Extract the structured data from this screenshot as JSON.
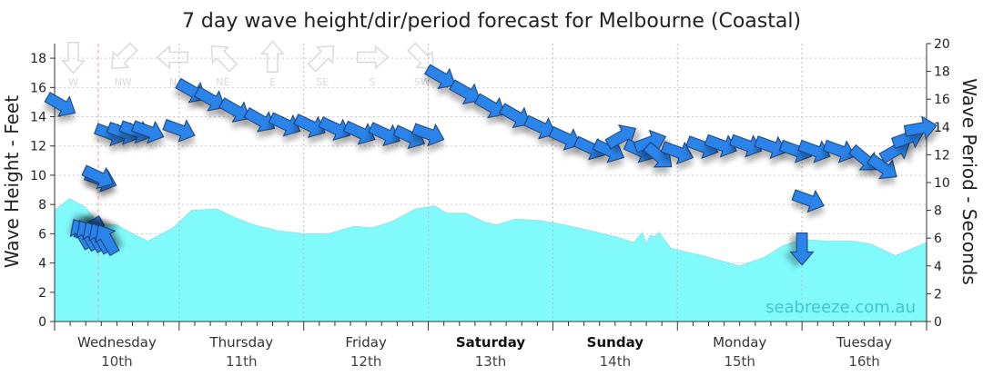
{
  "chart_data": {
    "type": "area",
    "title": "7 day wave height/dir/period forecast for Melbourne (Coastal)",
    "ylabel": "Wave Height - Feet",
    "y2label": "Wave Period - Seconds",
    "ylim": [
      0,
      19
    ],
    "y2lim": [
      0,
      20
    ],
    "yticks": [
      0,
      2,
      4,
      6,
      8,
      10,
      12,
      14,
      16,
      18
    ],
    "y2ticks": [
      0,
      2,
      4,
      6,
      8,
      10,
      12,
      14,
      16,
      18,
      20
    ],
    "grid": true,
    "xlim": [
      0,
      7
    ],
    "days": [
      {
        "name": "Wednesday",
        "date": "10th",
        "bold": false
      },
      {
        "name": "Thursday",
        "date": "11th",
        "bold": false
      },
      {
        "name": "Friday",
        "date": "12th",
        "bold": false
      },
      {
        "name": "Saturday",
        "date": "13th",
        "bold": true
      },
      {
        "name": "Sunday",
        "date": "14th",
        "bold": true
      },
      {
        "name": "Monday",
        "date": "15th",
        "bold": false
      },
      {
        "name": "Tuesday",
        "date": "16th",
        "bold": false
      }
    ],
    "wave_height": {
      "x": [
        0,
        0.12,
        0.25,
        0.35,
        0.5,
        0.65,
        0.75,
        0.95,
        1.1,
        1.3,
        1.45,
        1.6,
        1.8,
        2.0,
        2.2,
        2.4,
        2.55,
        2.7,
        2.9,
        3.05,
        3.15,
        3.3,
        3.45,
        3.55,
        3.7,
        3.9,
        4.1,
        4.3,
        4.5,
        4.65,
        4.72,
        4.75,
        4.78,
        4.82,
        4.85,
        4.95,
        5.2,
        5.5,
        5.7,
        5.85,
        6.0,
        6.2,
        6.4,
        6.55,
        6.75,
        7.0
      ],
      "values": [
        7.6,
        8.4,
        7.8,
        6.7,
        6.6,
        5.9,
        5.5,
        6.4,
        7.6,
        7.7,
        7.1,
        6.6,
        6.2,
        6.0,
        6.0,
        6.5,
        6.4,
        6.8,
        7.7,
        7.9,
        7.4,
        7.4,
        6.8,
        6.6,
        7.0,
        6.9,
        6.6,
        6.2,
        5.8,
        5.4,
        6.1,
        5.3,
        5.9,
        5.8,
        6.1,
        5.0,
        4.5,
        3.8,
        4.4,
        5.2,
        5.6,
        5.5,
        5.5,
        5.3,
        4.5,
        5.4
      ]
    },
    "wave_period": {
      "x": [
        0.05,
        0.27,
        0.37,
        0.45,
        0.55,
        0.65,
        0.75,
        1.0,
        1.1,
        1.25,
        1.45,
        1.65,
        1.85,
        2.05,
        2.25,
        2.45,
        2.65,
        2.85,
        3.0,
        3.1,
        3.3,
        3.5,
        3.7,
        3.9,
        4.1,
        4.3,
        4.45,
        4.55,
        4.7,
        4.78,
        4.85,
        5.0,
        5.2,
        5.35,
        5.55,
        5.75,
        5.95,
        6.1,
        6.3,
        6.5,
        6.65,
        6.75,
        6.85,
        6.95
      ],
      "values": [
        15.6,
        6.7,
        10.2,
        13.5,
        13.6,
        13.7,
        13.7,
        13.8,
        16.6,
        16.0,
        15.2,
        14.5,
        14.2,
        14.1,
        13.9,
        13.6,
        13.5,
        13.3,
        13.5,
        17.6,
        16.5,
        15.5,
        14.8,
        14.0,
        13.2,
        12.5,
        12.3,
        13.3,
        12.3,
        12.9,
        11.9,
        12.2,
        12.6,
        12.7,
        12.7,
        12.6,
        12.3,
        12.3,
        12.3,
        11.7,
        11.1,
        12.3,
        13.2,
        13.9
      ]
    },
    "wave_direction": {
      "arrow_heading_deg": [
        120,
        240,
        110,
        110,
        110,
        110,
        110,
        110,
        120,
        120,
        120,
        120,
        115,
        115,
        115,
        115,
        115,
        115,
        110,
        120,
        120,
        120,
        120,
        115,
        115,
        115,
        115,
        60,
        115,
        70,
        130,
        110,
        110,
        110,
        110,
        110,
        110,
        110,
        110,
        130,
        125,
        60,
        70,
        80
      ]
    },
    "wind": {
      "x": [
        0.15,
        0.55,
        0.95,
        1.35,
        1.75,
        2.15,
        2.55,
        2.95
      ],
      "labels": [
        "W",
        "NW",
        "N",
        "NE",
        "E",
        "SE",
        "S",
        "SW"
      ],
      "heading_deg": [
        90,
        135,
        180,
        225,
        270,
        315,
        0,
        45
      ]
    },
    "markers": [
      {
        "type": "wave_arrow",
        "x": 0.35,
        "y": 9.9,
        "heading_deg": 115
      },
      {
        "type": "wave_arrow",
        "x": 6.05,
        "y": 8.3,
        "heading_deg": 110
      },
      {
        "type": "wave_arrow",
        "x": 6.0,
        "y": 5.0,
        "heading_deg": 180
      }
    ],
    "current_time_x": 0.35,
    "day_separators_x": [
      0,
      1,
      2,
      3,
      4,
      5,
      6,
      7
    ]
  },
  "colors": {
    "wave_fill": "#80fafa",
    "wave_edge": "#9fe0e6",
    "arrow_fill": "#2b84ea",
    "arrow_stroke": "#1a3c70",
    "wind_arrow": "#dadada",
    "grid": "#cccccc",
    "now_line": "#f2a1a1",
    "brand": "#3fc6cf"
  },
  "branding": "seabreeze.com.au"
}
